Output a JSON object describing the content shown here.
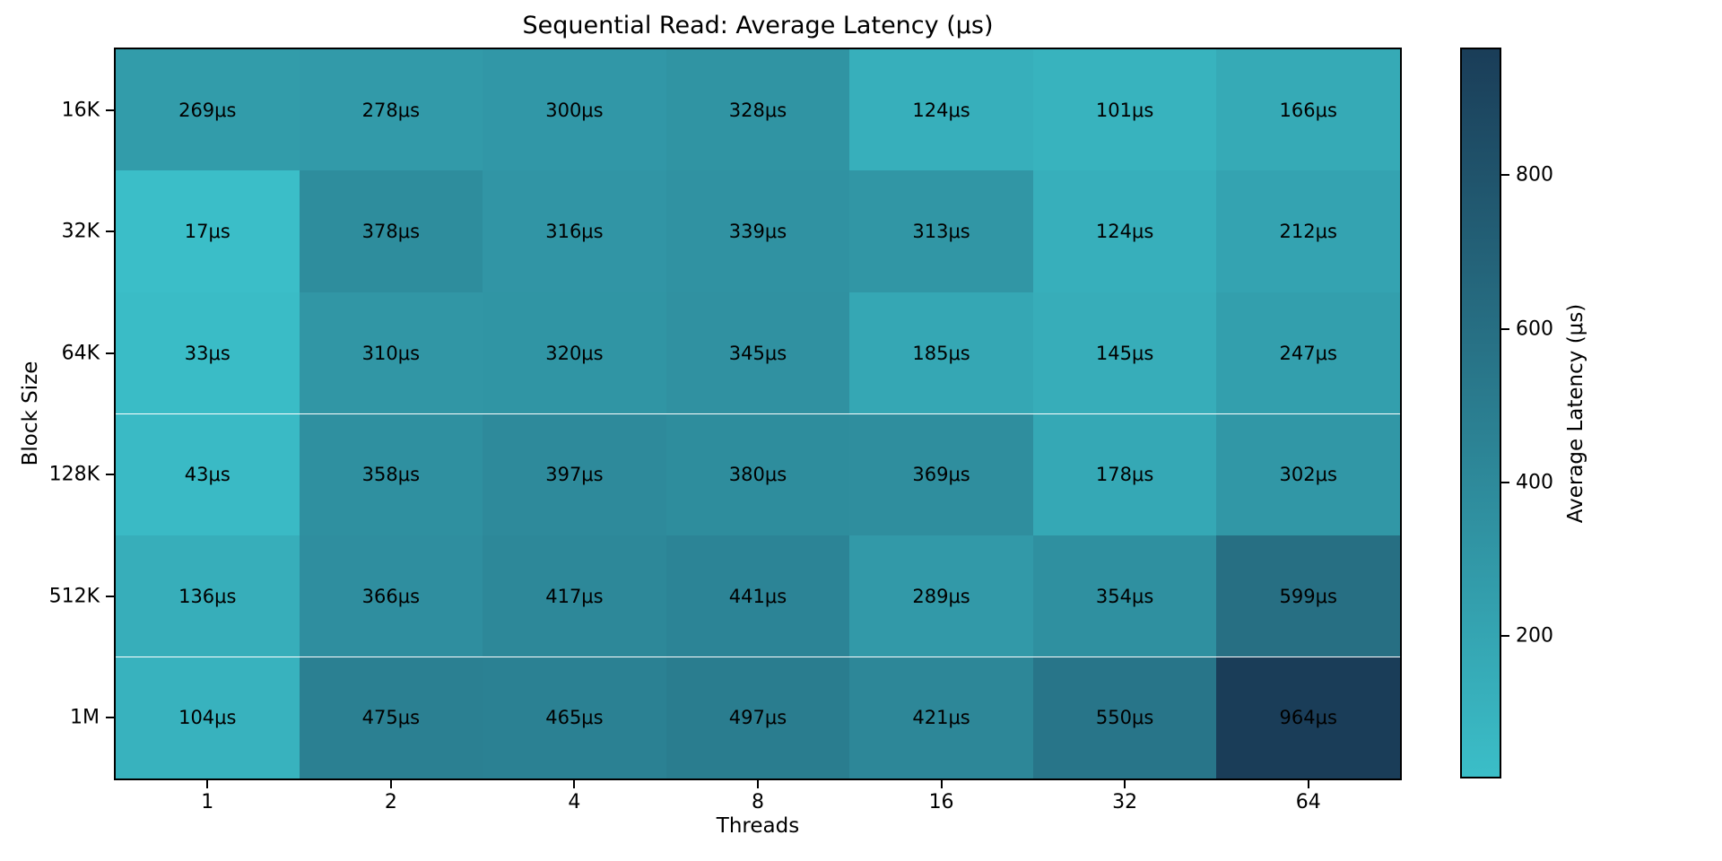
{
  "chart_data": {
    "type": "heatmap",
    "title": "Sequential Read: Average Latency (μs)",
    "xlabel": "Threads",
    "ylabel": "Block Size",
    "x_categories": [
      "1",
      "2",
      "4",
      "8",
      "16",
      "32",
      "64"
    ],
    "y_categories": [
      "16K",
      "32K",
      "64K",
      "128K",
      "512K",
      "1M"
    ],
    "values": [
      [
        269,
        278,
        300,
        328,
        124,
        101,
        166
      ],
      [
        17,
        378,
        316,
        339,
        313,
        124,
        212
      ],
      [
        33,
        310,
        320,
        345,
        185,
        145,
        247
      ],
      [
        43,
        358,
        397,
        380,
        369,
        178,
        302
      ],
      [
        136,
        366,
        417,
        441,
        289,
        354,
        599
      ],
      [
        104,
        475,
        465,
        497,
        421,
        550,
        964
      ]
    ],
    "cell_unit": "μs",
    "annotation_color": "#000000",
    "colorbar": {
      "label": "Average Latency (μs)",
      "ticks": [
        200,
        400,
        600,
        800
      ],
      "vmin": 17,
      "vmax": 964,
      "color_min": "#3bbec8",
      "color_max": "#1a3d58"
    },
    "legend": "none",
    "grid": false
  }
}
